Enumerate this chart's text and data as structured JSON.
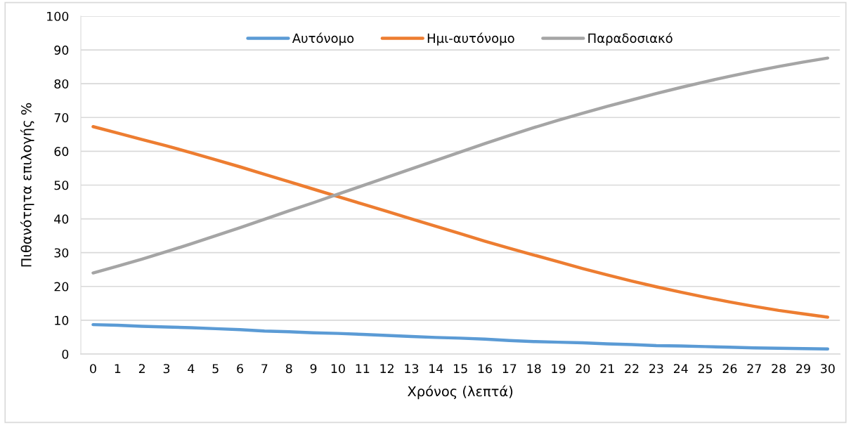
{
  "chart_data": {
    "type": "line",
    "xlabel": "Χρόνος (λεπτά)",
    "ylabel": "Πιθανότητα επιλογής %",
    "categories": [
      "0",
      "1",
      "2",
      "3",
      "4",
      "5",
      "6",
      "7",
      "8",
      "9",
      "10",
      "11",
      "12",
      "13",
      "14",
      "15",
      "16",
      "17",
      "18",
      "19",
      "20",
      "21",
      "22",
      "23",
      "24",
      "25",
      "26",
      "27",
      "28",
      "29",
      "30"
    ],
    "series": [
      {
        "name": "Αυτόνομο",
        "color": "#5b9bd5",
        "values": [
          8.7,
          8.5,
          8.2,
          8.0,
          7.8,
          7.5,
          7.2,
          6.8,
          6.6,
          6.3,
          6.1,
          5.8,
          5.5,
          5.2,
          4.9,
          4.7,
          4.4,
          4.0,
          3.7,
          3.5,
          3.3,
          3.0,
          2.8,
          2.5,
          2.4,
          2.2,
          2.0,
          1.8,
          1.7,
          1.6,
          1.5
        ]
      },
      {
        "name": "Ημι-αυτόνομο",
        "color": "#ed7d31",
        "values": [
          67.3,
          65.4,
          63.5,
          61.6,
          59.6,
          57.5,
          55.4,
          53.2,
          51.0,
          48.8,
          46.6,
          44.4,
          42.2,
          40.0,
          37.8,
          35.6,
          33.4,
          31.3,
          29.3,
          27.3,
          25.3,
          23.4,
          21.6,
          19.9,
          18.3,
          16.8,
          15.4,
          14.1,
          12.9,
          11.9,
          10.9
        ]
      },
      {
        "name": "Παραδοσιακό",
        "color": "#a5a5a5",
        "values": [
          24.0,
          26.0,
          28.1,
          30.3,
          32.6,
          35.0,
          37.4,
          39.9,
          42.4,
          44.8,
          47.3,
          49.8,
          52.3,
          54.8,
          57.3,
          59.8,
          62.3,
          64.7,
          67.0,
          69.2,
          71.3,
          73.3,
          75.2,
          77.1,
          78.9,
          80.6,
          82.2,
          83.7,
          85.1,
          86.4,
          87.6
        ]
      }
    ],
    "ylim": [
      0,
      100
    ],
    "yticks": [
      0,
      10,
      20,
      30,
      40,
      50,
      60,
      70,
      80,
      90,
      100
    ],
    "grid": "y",
    "legend": "top",
    "marker": "none",
    "line_style": "solid"
  }
}
